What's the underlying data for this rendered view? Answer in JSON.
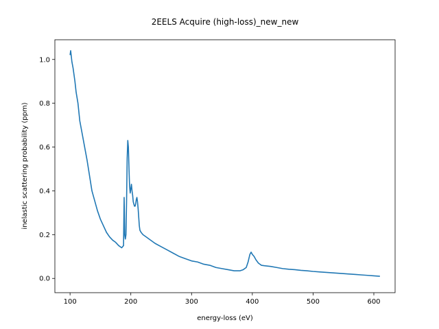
{
  "chart_data": {
    "type": "line",
    "title": "2EELS Acquire (high-loss)_new_new",
    "xlabel": "energy-loss (eV)",
    "ylabel": "inelastic scattering probability (ppm)",
    "xlim": [
      75,
      635
    ],
    "ylim": [
      -0.065,
      1.09
    ],
    "xticks": [
      100,
      200,
      300,
      400,
      500,
      600
    ],
    "yticks": [
      0.0,
      0.2,
      0.4,
      0.6,
      0.8,
      1.0
    ],
    "xtick_labels": [
      "100",
      "200",
      "300",
      "400",
      "500",
      "600"
    ],
    "ytick_labels": [
      "0.0",
      "0.2",
      "0.4",
      "0.6",
      "0.8",
      "1.0"
    ],
    "grid": false,
    "legend": "none",
    "series": [
      {
        "color": "#1f77b4",
        "x": [
          100,
          101,
          103,
          105,
          108,
          110,
          113,
          116,
          120,
          124,
          128,
          132,
          136,
          140,
          145,
          150,
          155,
          160,
          165,
          170,
          175,
          180,
          185,
          188,
          189,
          190,
          191,
          192,
          193,
          194,
          195,
          196,
          197,
          198,
          199,
          200,
          201,
          202,
          203,
          204,
          205,
          206,
          207,
          208,
          209,
          210,
          211,
          212,
          213,
          214,
          215,
          217,
          220,
          225,
          230,
          240,
          250,
          260,
          270,
          280,
          290,
          300,
          310,
          320,
          330,
          340,
          350,
          360,
          370,
          380,
          385,
          390,
          393,
          396,
          398,
          400,
          403,
          406,
          410,
          415,
          420,
          430,
          440,
          450,
          460,
          470,
          480,
          490,
          500,
          510,
          520,
          530,
          540,
          550,
          560,
          570,
          580,
          590,
          600,
          610
        ],
        "y": [
          1.02,
          1.04,
          0.99,
          0.96,
          0.9,
          0.85,
          0.8,
          0.72,
          0.66,
          0.6,
          0.54,
          0.47,
          0.4,
          0.36,
          0.31,
          0.27,
          0.24,
          0.21,
          0.19,
          0.175,
          0.165,
          0.15,
          0.14,
          0.15,
          0.37,
          0.2,
          0.18,
          0.2,
          0.35,
          0.55,
          0.63,
          0.6,
          0.5,
          0.42,
          0.39,
          0.41,
          0.43,
          0.4,
          0.38,
          0.35,
          0.34,
          0.33,
          0.33,
          0.34,
          0.36,
          0.37,
          0.35,
          0.32,
          0.28,
          0.24,
          0.22,
          0.21,
          0.2,
          0.19,
          0.18,
          0.16,
          0.145,
          0.13,
          0.115,
          0.1,
          0.09,
          0.08,
          0.075,
          0.065,
          0.06,
          0.05,
          0.045,
          0.04,
          0.035,
          0.035,
          0.04,
          0.05,
          0.075,
          0.11,
          0.12,
          0.11,
          0.1,
          0.085,
          0.07,
          0.06,
          0.058,
          0.055,
          0.05,
          0.045,
          0.042,
          0.04,
          0.037,
          0.035,
          0.032,
          0.03,
          0.028,
          0.026,
          0.024,
          0.022,
          0.02,
          0.018,
          0.016,
          0.014,
          0.012,
          0.01
        ]
      }
    ]
  }
}
